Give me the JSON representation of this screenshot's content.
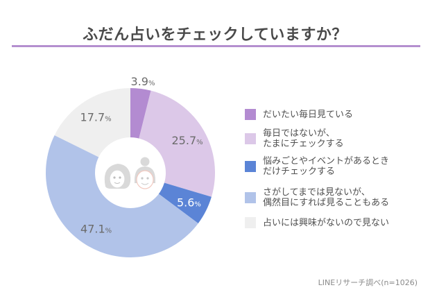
{
  "chart_data": {
    "type": "pie",
    "variant": "donut",
    "title": "ふだん占いをチェックしていますか？",
    "unit": "%",
    "slices": [
      {
        "label": "だいたい毎日見ている",
        "value": 3.9,
        "color": "#b38bd1",
        "value_text": "3.9",
        "label_color": "#6b6b6b"
      },
      {
        "label": "毎日ではないが、\nたまにチェックする",
        "value": 25.7,
        "color": "#dcc8e8",
        "value_text": "25.7",
        "label_color": "#6b6b6b"
      },
      {
        "label": "悩みごとやイベントがあるとき\nだけチェックする",
        "value": 5.6,
        "color": "#5b84d6",
        "value_text": "5.6",
        "label_color": "#ffffff"
      },
      {
        "label": "さがしてまでは見ないが、\n偶然目にすれば見ることもある",
        "value": 47.1,
        "color": "#b1c3e9",
        "value_text": "47.1",
        "label_color": "#6b6b6b"
      },
      {
        "label": "占いには興味がないので見ない",
        "value": 17.7,
        "color": "#efefef",
        "value_text": "17.7",
        "label_color": "#6b6b6b"
      }
    ],
    "legend_position": "right",
    "center_icon": "two-women-faces-icon"
  },
  "source": "LINEリサーチ調べ(n=1026)",
  "colors": {
    "title_rule": "#b48fcf",
    "icon_gray": "#d9d9d9",
    "icon_peach": "#f2c9c0"
  }
}
